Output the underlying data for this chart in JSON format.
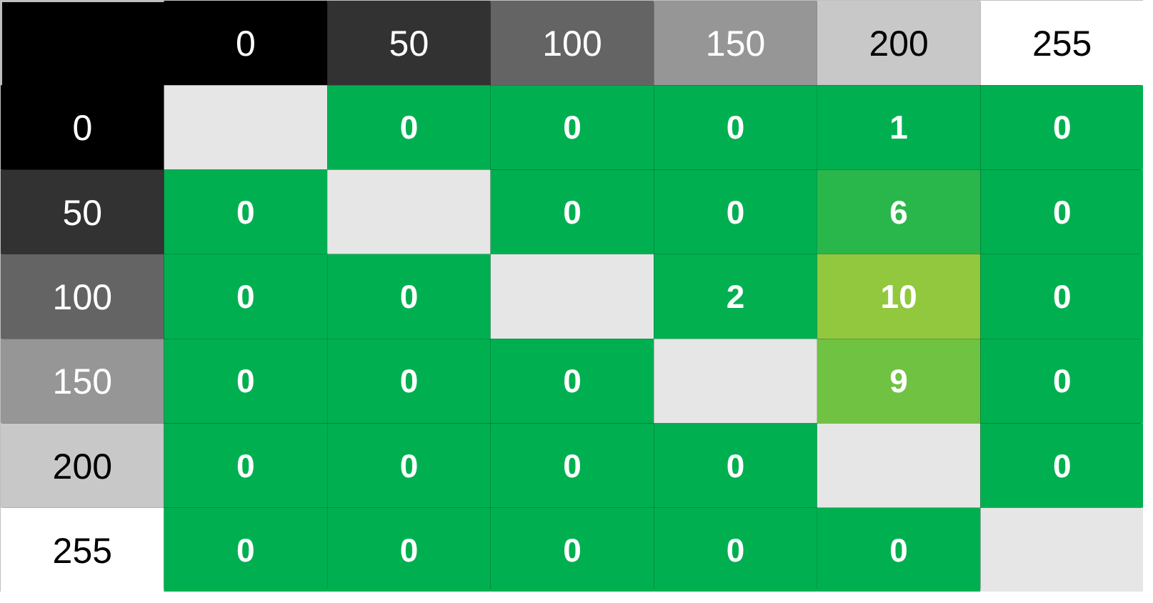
{
  "chart_data": {
    "type": "heatmap",
    "categories": [
      "0",
      "50",
      "100",
      "150",
      "200",
      "255"
    ],
    "y_categories": [
      "0",
      "50",
      "100",
      "150",
      "200",
      "255"
    ],
    "cells": [
      [
        null,
        0,
        0,
        0,
        1,
        0
      ],
      [
        0,
        null,
        0,
        0,
        6,
        0
      ],
      [
        0,
        0,
        null,
        2,
        10,
        0
      ],
      [
        0,
        0,
        0,
        null,
        9,
        0
      ],
      [
        0,
        0,
        0,
        0,
        null,
        0
      ],
      [
        0,
        0,
        0,
        0,
        0,
        null
      ]
    ],
    "data_labels": true
  }
}
